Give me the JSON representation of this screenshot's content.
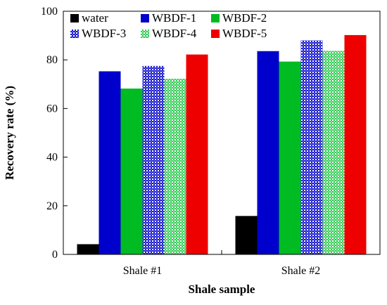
{
  "chart_data": {
    "type": "bar",
    "title": "",
    "xlabel": "Shale sample",
    "ylabel": "Recovery rate (%)",
    "ylim": [
      0,
      100
    ],
    "yticks": [
      0,
      20,
      40,
      60,
      80,
      100
    ],
    "categories": [
      "Shale #1",
      "Shale #2"
    ],
    "series": [
      {
        "name": "water",
        "values": [
          4.2,
          15.8
        ],
        "color": "#000000",
        "pattern": "solid"
      },
      {
        "name": "WBDF-1",
        "values": [
          75.3,
          83.6
        ],
        "color": "#0000cc",
        "pattern": "solid"
      },
      {
        "name": "WBDF-2",
        "values": [
          68.2,
          79.3
        ],
        "color": "#00bb22",
        "pattern": "solid"
      },
      {
        "name": "WBDF-3",
        "values": [
          77.5,
          88.0
        ],
        "color": "#1a1acc",
        "pattern": "checker"
      },
      {
        "name": "WBDF-4",
        "values": [
          72.2,
          83.7
        ],
        "color": "#33cc55",
        "pattern": "checker"
      },
      {
        "name": "WBDF-5",
        "values": [
          82.2,
          90.2
        ],
        "color": "#ee0000",
        "pattern": "solid"
      }
    ],
    "grid": false,
    "legend_position": "top"
  }
}
